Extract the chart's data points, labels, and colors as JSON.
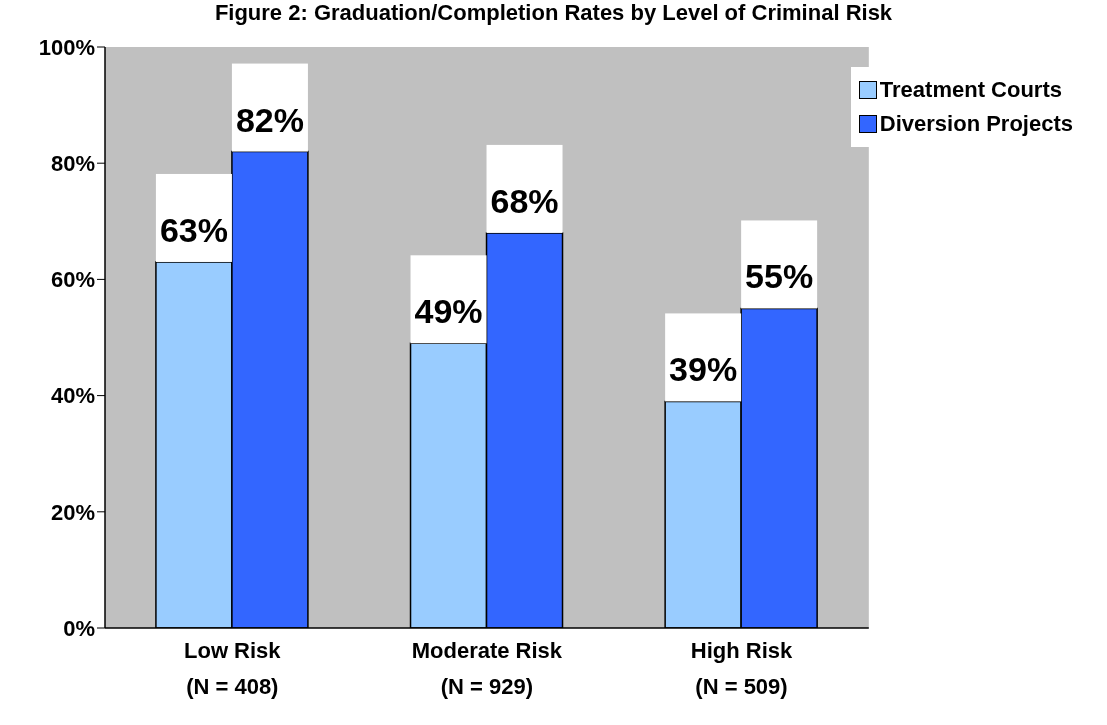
{
  "chart_data": {
    "type": "bar",
    "title": "Figure 2: Graduation/Completion Rates by Level of Criminal Risk",
    "categories": [
      "Low Risk\n(N = 408)",
      "Moderate Risk\n(N = 929)",
      "High Risk\n(N = 509)"
    ],
    "series": [
      {
        "name": "Treatment Courts",
        "color": "#99ccff",
        "values": [
          63,
          49,
          39
        ],
        "value_labels": [
          "63%",
          "49%",
          "39%"
        ]
      },
      {
        "name": "Diversion Projects",
        "color": "#3366ff",
        "values": [
          82,
          68,
          55
        ],
        "value_labels": [
          "82%",
          "68%",
          "55%"
        ]
      }
    ],
    "ylim": [
      0,
      100
    ],
    "yticks": [
      {
        "value": 0,
        "label": "0%"
      },
      {
        "value": 20,
        "label": "20%"
      },
      {
        "value": 40,
        "label": "40%"
      },
      {
        "value": 60,
        "label": "60%"
      },
      {
        "value": 80,
        "label": "80%"
      },
      {
        "value": 100,
        "label": "100%"
      }
    ],
    "legend": "top right",
    "grid": false
  }
}
